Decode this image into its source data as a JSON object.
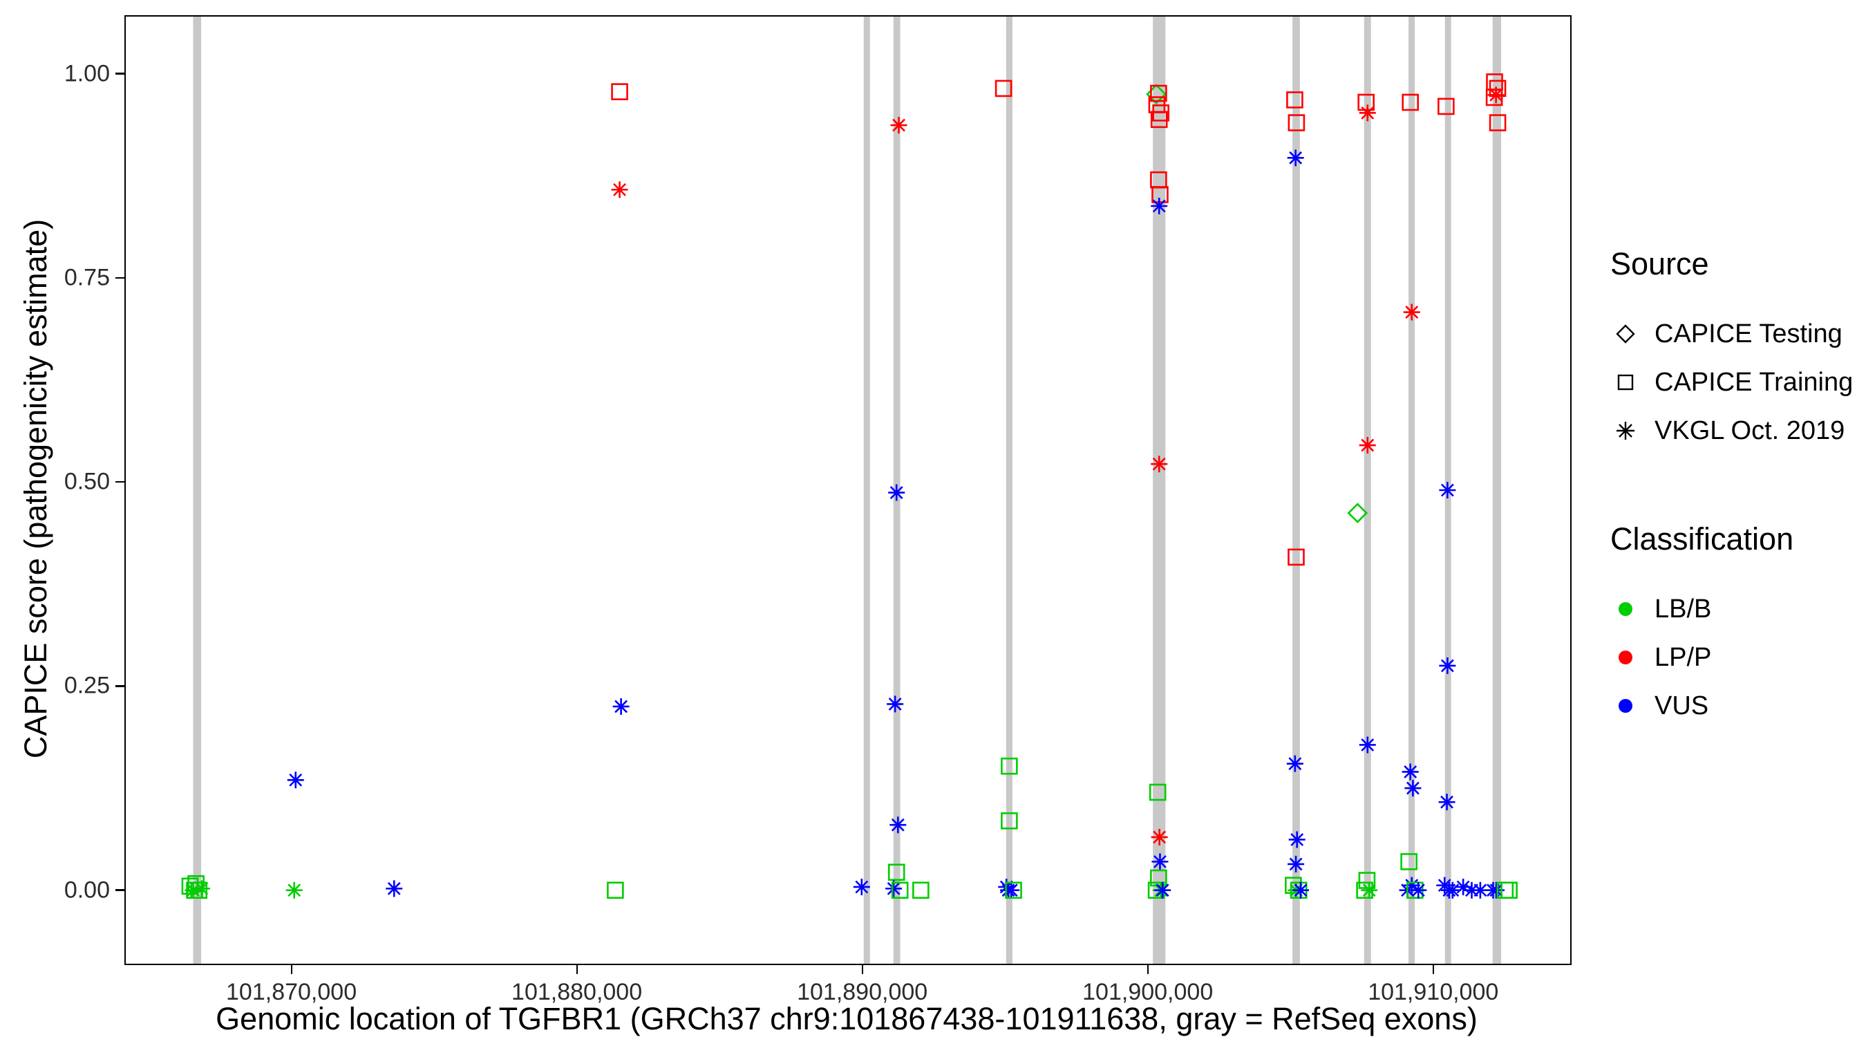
{
  "legend": {
    "source_title": "Source",
    "classification_title": "Classification"
  },
  "chart_data": {
    "type": "scatter",
    "title": "",
    "xlabel": "Genomic location of TGFBR1 (GRCh37 chr9:101867438-101911638, gray = RefSeq exons)",
    "ylabel": "CAPICE score (pathogenicity estimate)",
    "xlim": [
      101864200,
      101914800
    ],
    "ylim": [
      -0.09,
      1.07
    ],
    "grid": "off",
    "legend_position": "right",
    "x_ticks": [
      {
        "value": 101870000,
        "label": "101,870,000"
      },
      {
        "value": 101880000,
        "label": "101,880,000"
      },
      {
        "value": 101890000,
        "label": "101,890,000"
      },
      {
        "value": 101900000,
        "label": "101,900,000"
      },
      {
        "value": 101910000,
        "label": "101,910,000"
      }
    ],
    "y_ticks": [
      {
        "value": 0.0,
        "label": "0.00"
      },
      {
        "value": 0.25,
        "label": "0.25"
      },
      {
        "value": 0.5,
        "label": "0.50"
      },
      {
        "value": 0.75,
        "label": "0.75"
      },
      {
        "value": 1.0,
        "label": "1.00"
      }
    ],
    "exon_color": "#c8c8c8",
    "exons": [
      [
        101866560,
        101866840
      ],
      [
        101890060,
        101890260
      ],
      [
        101891090,
        101891330
      ],
      [
        101895040,
        101895260
      ],
      [
        101900180,
        101900620
      ],
      [
        101905070,
        101905330
      ],
      [
        101907580,
        101907820
      ],
      [
        101909140,
        101909350
      ],
      [
        101910420,
        101910620
      ],
      [
        101912080,
        101912380
      ]
    ],
    "classes": {
      "LB": {
        "label": "LB/B",
        "color": "#00cd00"
      },
      "LP": {
        "label": "LP/P",
        "color": "#ff0000"
      },
      "VUS": {
        "label": "VUS",
        "color": "#0000ff"
      }
    },
    "sources": {
      "test": {
        "label": "CAPICE Testing",
        "shape": "diamond"
      },
      "train": {
        "label": "CAPICE Training",
        "shape": "square"
      },
      "vkgl": {
        "label": "VKGL Oct. 2019",
        "shape": "asterisk"
      }
    },
    "points": [
      [
        101866450,
        0.005,
        "LB",
        "train"
      ],
      [
        101866560,
        0.0,
        "LB",
        "vkgl"
      ],
      [
        101866660,
        0.008,
        "LB",
        "train"
      ],
      [
        101866760,
        0.0,
        "LB",
        "train"
      ],
      [
        101866860,
        0.002,
        "LB",
        "vkgl"
      ],
      [
        101866610,
        0.0,
        "LB",
        "train"
      ],
      [
        101870100,
        0.0,
        "LB",
        "vkgl"
      ],
      [
        101870150,
        0.135,
        "VUS",
        "vkgl"
      ],
      [
        101873600,
        0.002,
        "VUS",
        "vkgl"
      ],
      [
        101881500,
        0.978,
        "LP",
        "train"
      ],
      [
        101881500,
        0.858,
        "LP",
        "vkgl"
      ],
      [
        101881550,
        0.225,
        "VUS",
        "vkgl"
      ],
      [
        101881350,
        0.0,
        "LB",
        "train"
      ],
      [
        101889980,
        0.004,
        "VUS",
        "vkgl"
      ],
      [
        101891280,
        0.937,
        "LP",
        "vkgl"
      ],
      [
        101891200,
        0.487,
        "VUS",
        "vkgl"
      ],
      [
        101891150,
        0.228,
        "VUS",
        "vkgl"
      ],
      [
        101891250,
        0.08,
        "VUS",
        "vkgl"
      ],
      [
        101891200,
        0.022,
        "LB",
        "train"
      ],
      [
        101891100,
        0.002,
        "VUS",
        "vkgl"
      ],
      [
        101891320,
        0.0,
        "LB",
        "train"
      ],
      [
        101892050,
        0.0,
        "LB",
        "train"
      ],
      [
        101894950,
        0.982,
        "LP",
        "train"
      ],
      [
        101895150,
        0.152,
        "LB",
        "train"
      ],
      [
        101895150,
        0.085,
        "LB",
        "train"
      ],
      [
        101895050,
        0.004,
        "VUS",
        "vkgl"
      ],
      [
        101895120,
        0.0,
        "VUS",
        "vkgl"
      ],
      [
        101895220,
        0.0,
        "VUS",
        "vkgl"
      ],
      [
        101895300,
        0.0,
        "LB",
        "train"
      ],
      [
        101900300,
        0.975,
        "LB",
        "test"
      ],
      [
        101900380,
        0.976,
        "LP",
        "train"
      ],
      [
        101900320,
        0.962,
        "LP",
        "train"
      ],
      [
        101900460,
        0.952,
        "LP",
        "train"
      ],
      [
        101900400,
        0.944,
        "LP",
        "train"
      ],
      [
        101900380,
        0.87,
        "LP",
        "train"
      ],
      [
        101900430,
        0.852,
        "LP",
        "train"
      ],
      [
        101900400,
        0.838,
        "VUS",
        "vkgl"
      ],
      [
        101900400,
        0.522,
        "LP",
        "vkgl"
      ],
      [
        101900350,
        0.12,
        "LB",
        "train"
      ],
      [
        101900410,
        0.065,
        "LP",
        "vkgl"
      ],
      [
        101900430,
        0.035,
        "VUS",
        "vkgl"
      ],
      [
        101900380,
        0.015,
        "LB",
        "train"
      ],
      [
        101900300,
        0.0,
        "LB",
        "train"
      ],
      [
        101900460,
        0.0,
        "LB",
        "vkgl"
      ],
      [
        101900520,
        0.0,
        "VUS",
        "vkgl"
      ],
      [
        101905150,
        0.968,
        "LP",
        "train"
      ],
      [
        101905210,
        0.94,
        "LP",
        "train"
      ],
      [
        101905180,
        0.897,
        "VUS",
        "vkgl"
      ],
      [
        101905200,
        0.408,
        "LP",
        "train"
      ],
      [
        101905160,
        0.155,
        "VUS",
        "vkgl"
      ],
      [
        101905230,
        0.062,
        "VUS",
        "vkgl"
      ],
      [
        101905190,
        0.032,
        "VUS",
        "vkgl"
      ],
      [
        101905100,
        0.006,
        "LB",
        "train"
      ],
      [
        101905200,
        0.0,
        "LB",
        "vkgl"
      ],
      [
        101905290,
        0.0,
        "LB",
        "train"
      ],
      [
        101905360,
        0.0,
        "VUS",
        "vkgl"
      ],
      [
        101907650,
        0.965,
        "LP",
        "train"
      ],
      [
        101907700,
        0.952,
        "LP",
        "vkgl"
      ],
      [
        101907700,
        0.545,
        "LP",
        "vkgl"
      ],
      [
        101907350,
        0.462,
        "LB",
        "test"
      ],
      [
        101907700,
        0.178,
        "VUS",
        "vkgl"
      ],
      [
        101907680,
        0.012,
        "LB",
        "train"
      ],
      [
        101907600,
        0.0,
        "LB",
        "train"
      ],
      [
        101907760,
        0.0,
        "LB",
        "vkgl"
      ],
      [
        101909200,
        0.965,
        "LP",
        "train"
      ],
      [
        101909250,
        0.708,
        "LP",
        "vkgl"
      ],
      [
        101909200,
        0.145,
        "VUS",
        "vkgl"
      ],
      [
        101909290,
        0.125,
        "VUS",
        "vkgl"
      ],
      [
        101909150,
        0.035,
        "LB",
        "train"
      ],
      [
        101909250,
        0.006,
        "VUS",
        "vkgl"
      ],
      [
        101909100,
        0.0,
        "VUS",
        "vkgl"
      ],
      [
        101909360,
        0.0,
        "LB",
        "train"
      ],
      [
        101909480,
        0.0,
        "VUS",
        "vkgl"
      ],
      [
        101910450,
        0.96,
        "LP",
        "train"
      ],
      [
        101910500,
        0.49,
        "VUS",
        "vkgl"
      ],
      [
        101910500,
        0.275,
        "VUS",
        "vkgl"
      ],
      [
        101910480,
        0.108,
        "VUS",
        "vkgl"
      ],
      [
        101910400,
        0.006,
        "VUS",
        "vkgl"
      ],
      [
        101910560,
        0.0,
        "VUS",
        "vkgl"
      ],
      [
        101910680,
        0.0,
        "VUS",
        "vkgl"
      ],
      [
        101911050,
        0.004,
        "VUS",
        "vkgl"
      ],
      [
        101911350,
        0.0,
        "VUS",
        "vkgl"
      ],
      [
        101911650,
        0.0,
        "VUS",
        "vkgl"
      ],
      [
        101912150,
        0.99,
        "LP",
        "train"
      ],
      [
        101912260,
        0.982,
        "LP",
        "train"
      ],
      [
        101912200,
        0.974,
        "LP",
        "vkgl"
      ],
      [
        101912140,
        0.971,
        "LP",
        "train"
      ],
      [
        101912260,
        0.94,
        "LP",
        "train"
      ],
      [
        101912100,
        0.0,
        "VUS",
        "vkgl"
      ],
      [
        101912210,
        0.0,
        "VUS",
        "vkgl"
      ],
      [
        101912520,
        0.0,
        "LB",
        "train"
      ],
      [
        101912660,
        0.0,
        "LB",
        "train"
      ]
    ]
  }
}
